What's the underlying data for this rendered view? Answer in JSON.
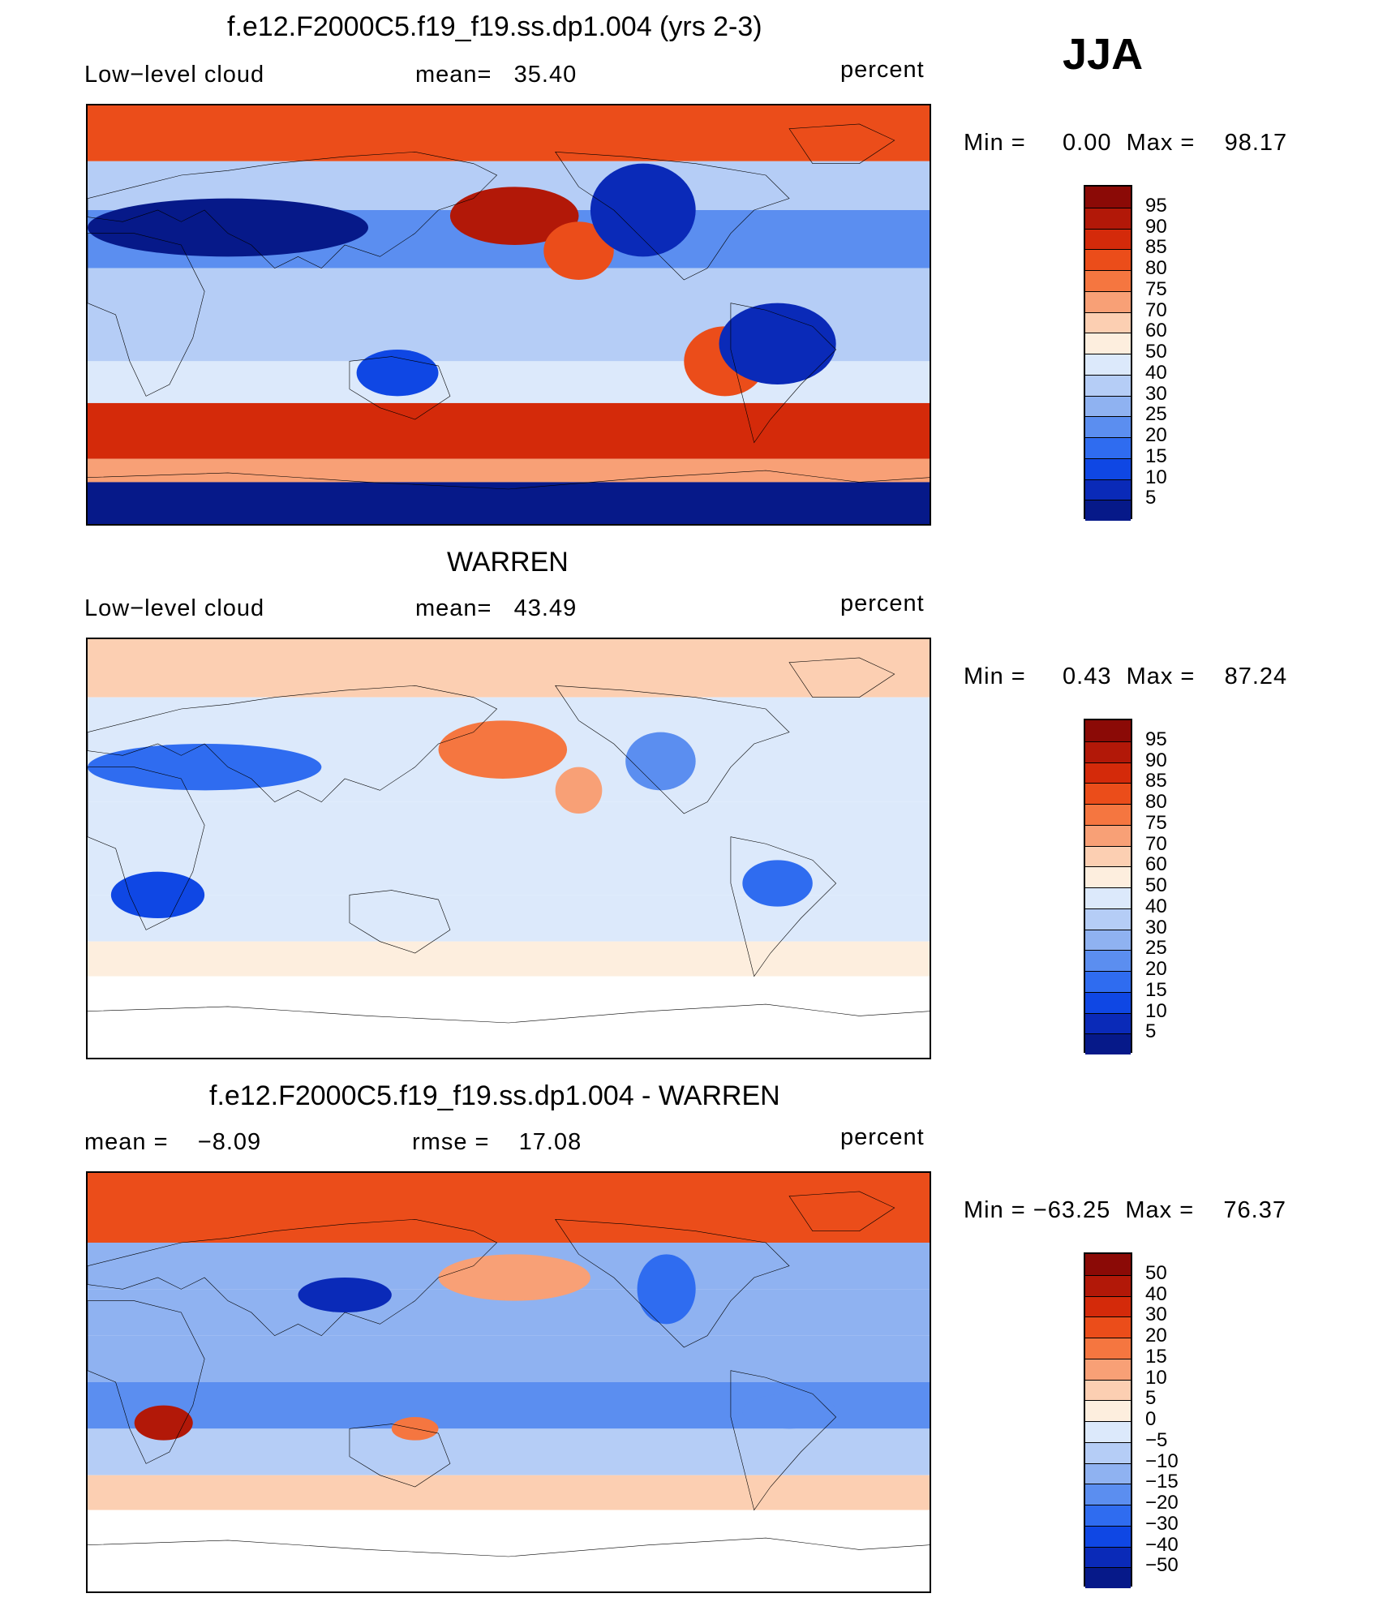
{
  "season": "JJA",
  "panels": [
    {
      "title": "f.e12.F2000C5.f19_f19.ss.dp1.004 (yrs 2-3)",
      "left_label": "Low−level cloud",
      "center_label": "mean=   35.40",
      "units": "percent",
      "minmax": "Min =     0.00  Max =    98.17",
      "colorbar_labels": [
        "95",
        "90",
        "85",
        "80",
        "75",
        "70",
        "60",
        "50",
        "40",
        "30",
        "25",
        "20",
        "15",
        "10",
        "5"
      ],
      "colors": [
        "#8b0a06",
        "#b21808",
        "#d42a0a",
        "#eb4d1a",
        "#f57640",
        "#f8a076",
        "#fccfb2",
        "#fdeede",
        "#dce9fb",
        "#b5cdf6",
        "#8fb2f1",
        "#5b8ef0",
        "#2f6cf0",
        "#0f47e4",
        "#0a2ab8",
        "#061989"
      ],
      "bands": [
        {
          "lat": [
            66,
            90
          ],
          "val": 82
        },
        {
          "lat": [
            45,
            66
          ],
          "val": 30
        },
        {
          "lat": [
            20,
            45
          ],
          "val": 22
        },
        {
          "lat": [
            0,
            20
          ],
          "val": 35
        },
        {
          "lat": [
            -20,
            0
          ],
          "val": 30
        },
        {
          "lat": [
            -38,
            -20
          ],
          "val": 45
        },
        {
          "lat": [
            -62,
            -38
          ],
          "val": 88
        },
        {
          "lat": [
            -72,
            -62
          ],
          "val": 70
        },
        {
          "lat": [
            -90,
            -72
          ],
          "val": 3
        }
      ],
      "patches": [
        {
          "lon": [
            155,
            210
          ],
          "lat": [
            30,
            55
          ],
          "val": 92
        },
        {
          "lon": [
            195,
            225
          ],
          "lat": [
            15,
            40
          ],
          "val": 80
        },
        {
          "lon": [
            255,
            290
          ],
          "lat": [
            -35,
            -5
          ],
          "val": 80
        },
        {
          "lon": [
            215,
            260
          ],
          "lat": [
            25,
            65
          ],
          "val": 5
        },
        {
          "lon": [
            0,
            120
          ],
          "lat": [
            25,
            50
          ],
          "val": 3
        },
        {
          "lon": [
            270,
            320
          ],
          "lat": [
            -30,
            5
          ],
          "val": 5
        },
        {
          "lon": [
            115,
            150
          ],
          "lat": [
            -35,
            -15
          ],
          "val": 10
        }
      ]
    },
    {
      "title": "WARREN",
      "left_label": "Low−level cloud",
      "center_label": "mean=   43.49",
      "units": "percent",
      "minmax": "Min =     0.43  Max =    87.24",
      "colorbar_labels": [
        "95",
        "90",
        "85",
        "80",
        "75",
        "70",
        "60",
        "50",
        "40",
        "30",
        "25",
        "20",
        "15",
        "10",
        "5"
      ],
      "colors": [
        "#8b0a06",
        "#b21808",
        "#d42a0a",
        "#eb4d1a",
        "#f57640",
        "#f8a076",
        "#fccfb2",
        "#fdeede",
        "#dce9fb",
        "#b5cdf6",
        "#8fb2f1",
        "#5b8ef0",
        "#2f6cf0",
        "#0f47e4",
        "#0a2ab8",
        "#061989"
      ],
      "bands": [
        {
          "lat": [
            65,
            90
          ],
          "val": 65
        },
        {
          "lat": [
            45,
            65
          ],
          "val": 45
        },
        {
          "lat": [
            20,
            45
          ],
          "val": 40
        },
        {
          "lat": [
            0,
            20
          ],
          "val": 45
        },
        {
          "lat": [
            -20,
            0
          ],
          "val": 40
        },
        {
          "lat": [
            -40,
            -20
          ],
          "val": 45
        },
        {
          "lat": [
            -55,
            -40
          ],
          "val": 55
        },
        {
          "lat": [
            -90,
            -55
          ],
          "val": null
        }
      ],
      "patches": [
        {
          "lon": [
            150,
            205
          ],
          "lat": [
            30,
            55
          ],
          "val": 75
        },
        {
          "lon": [
            200,
            220
          ],
          "lat": [
            15,
            35
          ],
          "val": 70
        },
        {
          "lon": [
            0,
            100
          ],
          "lat": [
            25,
            45
          ],
          "val": 15
        },
        {
          "lon": [
            10,
            50
          ],
          "lat": [
            -30,
            -10
          ],
          "val": 10
        },
        {
          "lon": [
            230,
            260
          ],
          "lat": [
            25,
            50
          ],
          "val": 20
        },
        {
          "lon": [
            280,
            310
          ],
          "lat": [
            -25,
            -5
          ],
          "val": 15
        }
      ]
    },
    {
      "title": "f.e12.F2000C5.f19_f19.ss.dp1.004 - WARREN",
      "left_label": "mean =    −8.09",
      "center_label": "rmse =    17.08",
      "units": "percent",
      "minmax": "Min = −63.25  Max =    76.37",
      "colorbar_labels": [
        "50",
        "40",
        "30",
        "20",
        "15",
        "10",
        "5",
        "0",
        "−5",
        "−10",
        "−15",
        "−20",
        "−30",
        "−40",
        "−50"
      ],
      "colors": [
        "#8b0a06",
        "#b21808",
        "#d42a0a",
        "#eb4d1a",
        "#f57640",
        "#f8a076",
        "#fccfb2",
        "#fdeede",
        "#dce9fb",
        "#b5cdf6",
        "#8fb2f1",
        "#5b8ef0",
        "#2f6cf0",
        "#0f47e4",
        "#0a2ab8",
        "#061989"
      ],
      "bands": [
        {
          "lat": [
            60,
            90
          ],
          "val": 22
        },
        {
          "lat": [
            40,
            60
          ],
          "val": -12
        },
        {
          "lat": [
            20,
            40
          ],
          "val": -15
        },
        {
          "lat": [
            0,
            20
          ],
          "val": -12
        },
        {
          "lat": [
            -20,
            0
          ],
          "val": -18
        },
        {
          "lat": [
            -40,
            -20
          ],
          "val": -10
        },
        {
          "lat": [
            -55,
            -40
          ],
          "val": 6
        },
        {
          "lat": [
            -90,
            -55
          ],
          "val": null
        }
      ],
      "patches": [
        {
          "lon": [
            150,
            215
          ],
          "lat": [
            35,
            55
          ],
          "val": 12
        },
        {
          "lon": [
            20,
            45
          ],
          "lat": [
            -25,
            -10
          ],
          "val": 40
        },
        {
          "lon": [
            90,
            130
          ],
          "lat": [
            30,
            45
          ],
          "val": -45
        },
        {
          "lon": [
            235,
            260
          ],
          "lat": [
            25,
            55
          ],
          "val": -25
        },
        {
          "lon": [
            280,
            320
          ],
          "lat": [
            -20,
            -5
          ],
          "val": -20
        },
        {
          "lon": [
            130,
            150
          ],
          "lat": [
            -25,
            -15
          ],
          "val": 18
        }
      ]
    }
  ]
}
